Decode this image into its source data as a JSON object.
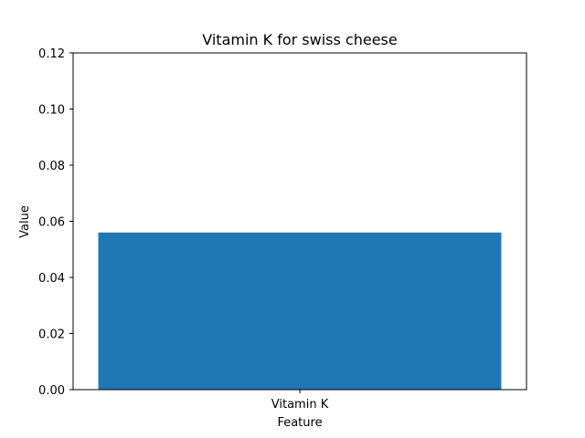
{
  "chart_data": {
    "type": "bar",
    "title": "Vitamin K for swiss cheese",
    "xlabel": "Feature",
    "ylabel": "Value",
    "categories": [
      "Vitamin K"
    ],
    "values": [
      0.056
    ],
    "ylim": [
      0,
      0.12
    ],
    "yticks": [
      "0.00",
      "0.02",
      "0.04",
      "0.06",
      "0.08",
      "0.10",
      "0.12"
    ],
    "bar_color": "#1f77b4",
    "grid": false,
    "legend": "none"
  }
}
